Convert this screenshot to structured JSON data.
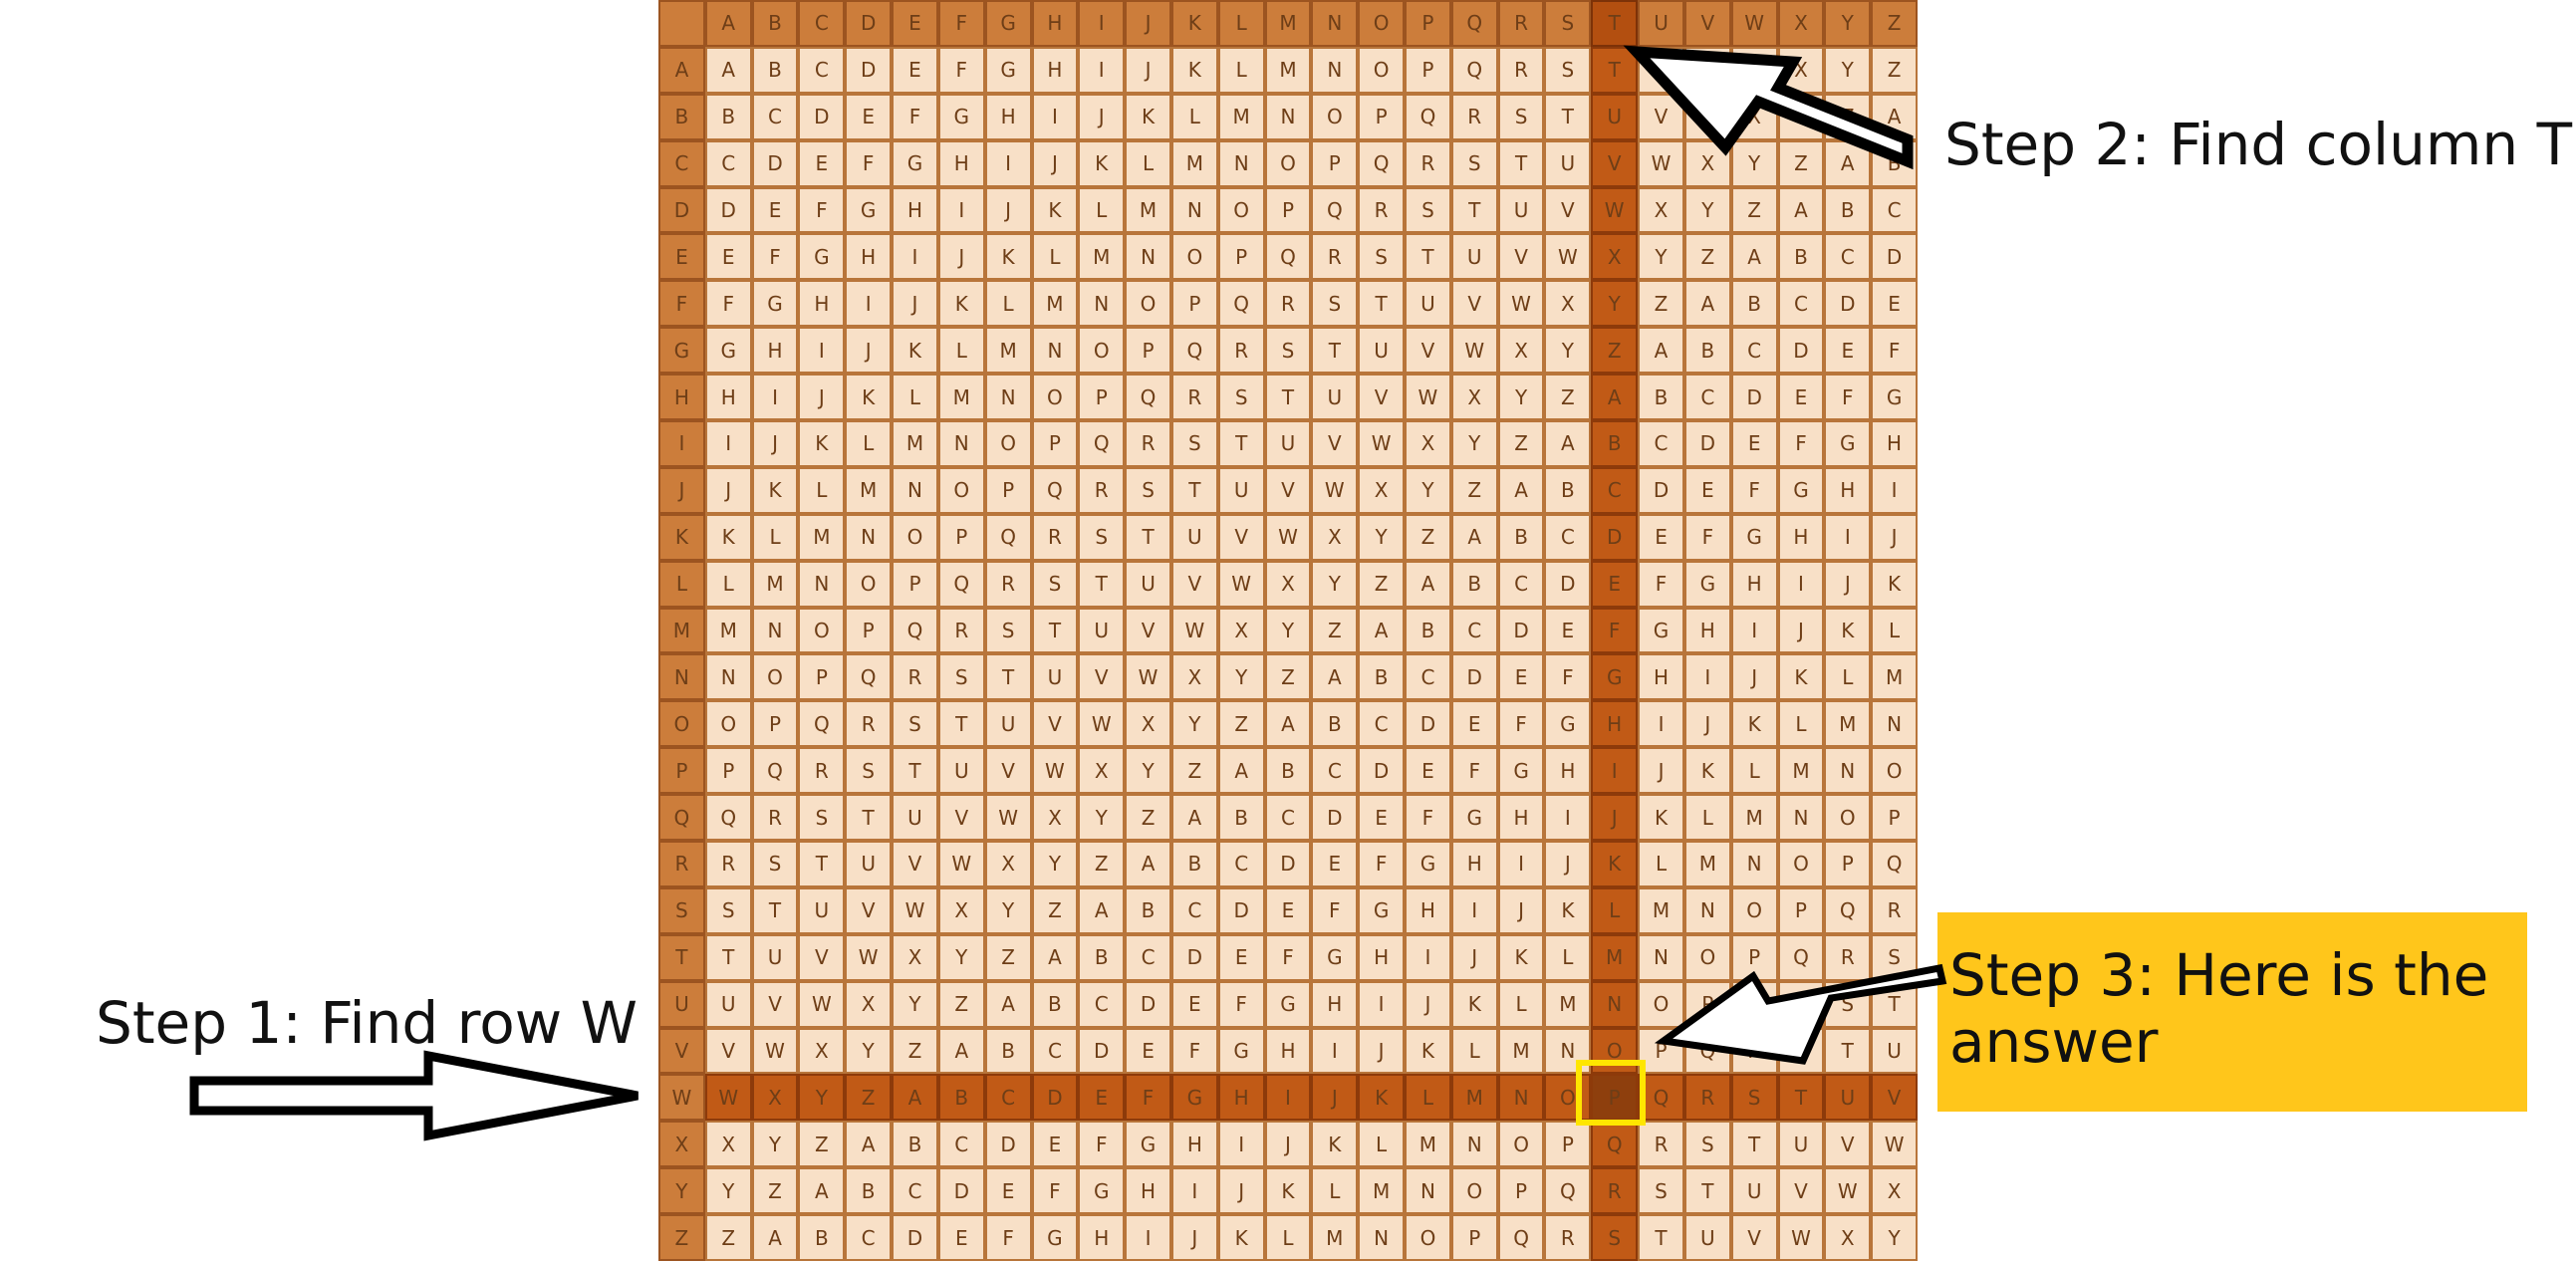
{
  "grid": {
    "letters": [
      "A",
      "B",
      "C",
      "D",
      "E",
      "F",
      "G",
      "H",
      "I",
      "J",
      "K",
      "L",
      "M",
      "N",
      "O",
      "P",
      "Q",
      "R",
      "S",
      "T",
      "U",
      "V",
      "W",
      "X",
      "Y",
      "Z"
    ],
    "highlight_row": "W",
    "highlight_column": "T",
    "answer": "P",
    "colors": {
      "cell": "#f8e0c7",
      "header": "#cc7d3b",
      "highlight": "#c15a16",
      "answer_outline": "#ffe600"
    }
  },
  "annotations": {
    "step1": "Step 1: Find row W",
    "step2": "Step 2: Find column T",
    "step3": "Step 3: Here is the answer",
    "step3_background": "#ffc61b"
  }
}
